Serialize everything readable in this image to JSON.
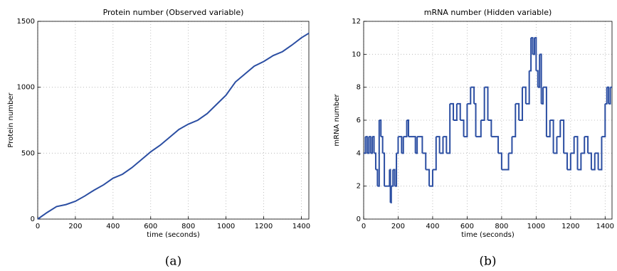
{
  "chart_data": [
    {
      "type": "line",
      "title": "Protein number (Observed variable)",
      "xlabel": "time (seconds)",
      "ylabel": "Protein number",
      "caption": "(a)",
      "x": [
        0,
        50,
        100,
        150,
        200,
        250,
        300,
        350,
        400,
        450,
        500,
        550,
        600,
        650,
        700,
        750,
        800,
        850,
        900,
        950,
        1000,
        1050,
        1100,
        1150,
        1200,
        1250,
        1300,
        1350,
        1400,
        1440
      ],
      "series": [
        {
          "name": "Protein number",
          "color": "#2b4ea2",
          "values": [
            0,
            50,
            95,
            110,
            135,
            175,
            220,
            260,
            310,
            340,
            390,
            450,
            510,
            560,
            620,
            680,
            720,
            750,
            800,
            870,
            940,
            1040,
            1100,
            1160,
            1195,
            1240,
            1270,
            1320,
            1375,
            1410
          ]
        }
      ],
      "xlim": [
        0,
        1440
      ],
      "ylim": [
        0,
        1500
      ],
      "xticks": [
        0,
        200,
        400,
        600,
        800,
        1000,
        1200,
        1400
      ],
      "yticks": [
        0,
        500,
        1000,
        1500
      ],
      "grid": true
    },
    {
      "type": "step",
      "title": "mRNA number (Hidden variable)",
      "xlabel": "time (seconds)",
      "ylabel": "mRNA number",
      "caption": "(b)",
      "x": [
        0,
        10,
        20,
        30,
        40,
        50,
        60,
        70,
        80,
        90,
        100,
        110,
        120,
        140,
        150,
        155,
        160,
        170,
        180,
        190,
        200,
        220,
        230,
        250,
        260,
        300,
        310,
        340,
        360,
        380,
        400,
        420,
        440,
        460,
        480,
        500,
        520,
        540,
        560,
        580,
        600,
        620,
        640,
        650,
        680,
        700,
        720,
        740,
        780,
        800,
        840,
        860,
        880,
        900,
        920,
        940,
        960,
        970,
        980,
        990,
        1000,
        1010,
        1020,
        1030,
        1040,
        1060,
        1080,
        1100,
        1120,
        1140,
        1160,
        1180,
        1200,
        1220,
        1240,
        1260,
        1280,
        1300,
        1320,
        1340,
        1360,
        1380,
        1400,
        1410,
        1420,
        1430,
        1440
      ],
      "series": [
        {
          "name": "mRNA number",
          "color": "#2b4ea2",
          "values": [
            4,
            5,
            4,
            5,
            4,
            5,
            4,
            3,
            2,
            6,
            5,
            4,
            2,
            2,
            3,
            1,
            2,
            3,
            2,
            4,
            5,
            4,
            5,
            6,
            5,
            4,
            5,
            4,
            3,
            2,
            3,
            5,
            4,
            5,
            4,
            7,
            6,
            7,
            6,
            5,
            7,
            8,
            7,
            5,
            6,
            8,
            6,
            5,
            4,
            3,
            4,
            5,
            7,
            6,
            8,
            7,
            9,
            11,
            10,
            11,
            9,
            8,
            10,
            7,
            8,
            5,
            6,
            4,
            5,
            6,
            4,
            3,
            4,
            5,
            3,
            4,
            5,
            4,
            3,
            4,
            3,
            5,
            7,
            8,
            7,
            8,
            8
          ]
        }
      ],
      "xlim": [
        0,
        1440
      ],
      "ylim": [
        0,
        12
      ],
      "xticks": [
        0,
        200,
        400,
        600,
        800,
        1000,
        1200,
        1400
      ],
      "yticks": [
        0,
        2,
        4,
        6,
        8,
        10,
        12
      ],
      "grid": true
    }
  ]
}
